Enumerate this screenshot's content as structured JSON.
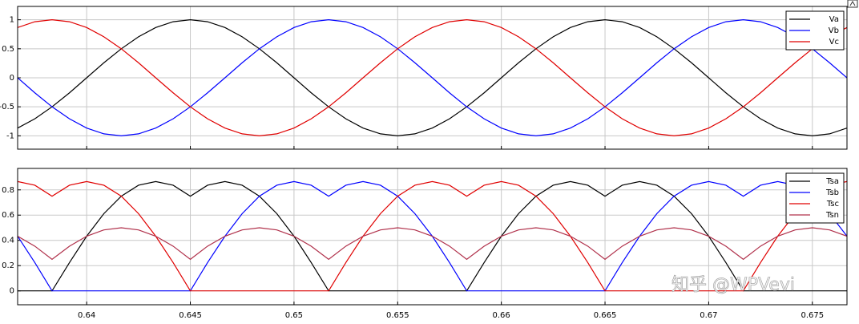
{
  "chart_data": [
    {
      "type": "line",
      "x": [
        0.63667,
        0.6375,
        0.63833,
        0.63917,
        0.64,
        0.64083,
        0.64167,
        0.6425,
        0.64333,
        0.64417,
        0.645,
        0.64583,
        0.64667,
        0.6475,
        0.64833,
        0.64917,
        0.65,
        0.65083,
        0.65167,
        0.6525,
        0.65333,
        0.65417,
        0.655,
        0.65583,
        0.65667,
        0.6575,
        0.65833,
        0.65917,
        0.66,
        0.66083,
        0.66167,
        0.6625,
        0.66333,
        0.66417,
        0.665,
        0.66583,
        0.66667,
        0.6675,
        0.66833,
        0.66917,
        0.67,
        0.67083,
        0.67167,
        0.6725,
        0.67333,
        0.67417,
        0.675,
        0.67583,
        0.67667
      ],
      "series": [
        {
          "name": "Va",
          "color": "#000000",
          "values": [
            -0.866,
            -0.707,
            -0.5,
            -0.259,
            0,
            0.259,
            0.5,
            0.707,
            0.866,
            0.966,
            1,
            0.966,
            0.866,
            0.707,
            0.5,
            0.259,
            0,
            -0.259,
            -0.5,
            -0.707,
            -0.866,
            -0.966,
            -1,
            -0.966,
            -0.866,
            -0.707,
            -0.5,
            -0.259,
            0,
            0.259,
            0.5,
            0.707,
            0.866,
            0.966,
            1,
            0.966,
            0.866,
            0.707,
            0.5,
            0.259,
            0,
            -0.259,
            -0.5,
            -0.707,
            -0.866,
            -0.966,
            -1,
            -0.966,
            -0.866
          ]
        },
        {
          "name": "Vb",
          "color": "#0000ff",
          "values": [
            0,
            -0.259,
            -0.5,
            -0.707,
            -0.866,
            -0.966,
            -1,
            -0.966,
            -0.866,
            -0.707,
            -0.5,
            -0.259,
            0,
            0.259,
            0.5,
            0.707,
            0.866,
            0.966,
            1,
            0.966,
            0.866,
            0.707,
            0.5,
            0.259,
            0,
            -0.259,
            -0.5,
            -0.707,
            -0.866,
            -0.966,
            -1,
            -0.966,
            -0.866,
            -0.707,
            -0.5,
            -0.259,
            0,
            0.259,
            0.5,
            0.707,
            0.866,
            0.966,
            1,
            0.966,
            0.866,
            0.707,
            0.5,
            0.259,
            0
          ]
        },
        {
          "name": "Vc",
          "color": "#e00000",
          "values": [
            0.866,
            0.966,
            1,
            0.966,
            0.866,
            0.707,
            0.5,
            0.259,
            0,
            -0.259,
            -0.5,
            -0.707,
            -0.866,
            -0.966,
            -1,
            -0.966,
            -0.866,
            -0.707,
            -0.5,
            -0.259,
            0,
            0.259,
            0.5,
            0.707,
            0.866,
            0.966,
            1,
            0.966,
            0.866,
            0.707,
            0.5,
            0.259,
            0,
            -0.259,
            -0.5,
            -0.707,
            -0.866,
            -0.966,
            -1,
            -0.966,
            -0.866,
            -0.707,
            -0.5,
            -0.259,
            0,
            0.259,
            0.5,
            0.707,
            0.866
          ]
        }
      ],
      "xlim": [
        0.63667,
        0.67667
      ],
      "ylim": [
        -1.23,
        1.23
      ],
      "yticks": [
        -1,
        -0.5,
        0,
        0.5,
        1
      ],
      "grid": true,
      "legend": "upper-right"
    },
    {
      "type": "line",
      "x": [
        0.63667,
        0.6375,
        0.63833,
        0.63917,
        0.64,
        0.64083,
        0.64167,
        0.6425,
        0.64333,
        0.64417,
        0.645,
        0.64583,
        0.64667,
        0.6475,
        0.64833,
        0.64917,
        0.65,
        0.65083,
        0.65167,
        0.6525,
        0.65333,
        0.65417,
        0.655,
        0.65583,
        0.65667,
        0.6575,
        0.65833,
        0.65917,
        0.66,
        0.66083,
        0.66167,
        0.6625,
        0.66333,
        0.66417,
        0.665,
        0.66583,
        0.66667,
        0.6675,
        0.66833,
        0.66917,
        0.67,
        0.67083,
        0.67167,
        0.6725,
        0.67333,
        0.67417,
        0.675,
        0.67583,
        0.67667
      ],
      "series": [
        {
          "name": "Tsa",
          "color": "#000000",
          "values": [
            0,
            0,
            0,
            0.224,
            0.433,
            0.612,
            0.75,
            0.837,
            0.866,
            0.837,
            0.75,
            0.837,
            0.866,
            0.837,
            0.75,
            0.612,
            0.433,
            0.224,
            0,
            0,
            0,
            0,
            0,
            0,
            0,
            0,
            0,
            0.224,
            0.433,
            0.612,
            0.75,
            0.837,
            0.866,
            0.837,
            0.75,
            0.837,
            0.866,
            0.837,
            0.75,
            0.612,
            0.433,
            0.224,
            0,
            0,
            0,
            0,
            0,
            0,
            0
          ]
        },
        {
          "name": "Tsb",
          "color": "#0000ff",
          "values": [
            0.433,
            0.224,
            0,
            0,
            0,
            0,
            0,
            0,
            0,
            0,
            0,
            0.224,
            0.433,
            0.612,
            0.75,
            0.837,
            0.866,
            0.837,
            0.75,
            0.837,
            0.866,
            0.837,
            0.75,
            0.612,
            0.433,
            0.224,
            0,
            0,
            0,
            0,
            0,
            0,
            0,
            0,
            0,
            0.224,
            0.433,
            0.612,
            0.75,
            0.837,
            0.866,
            0.837,
            0.75,
            0.837,
            0.866,
            0.837,
            0.75,
            0.612,
            0.433
          ]
        },
        {
          "name": "Tsc",
          "color": "#e00000",
          "values": [
            0.866,
            0.837,
            0.75,
            0.837,
            0.866,
            0.837,
            0.75,
            0.612,
            0.433,
            0.224,
            0,
            0,
            0,
            0,
            0,
            0,
            0,
            0,
            0,
            0.224,
            0.433,
            0.612,
            0.75,
            0.837,
            0.866,
            0.837,
            0.75,
            0.837,
            0.866,
            0.837,
            0.75,
            0.612,
            0.433,
            0.224,
            0,
            0,
            0,
            0,
            0,
            0,
            0,
            0,
            0,
            0.224,
            0.433,
            0.612,
            0.75,
            0.837,
            0.866
          ]
        },
        {
          "name": "Tsn",
          "color": "#b0304a",
          "values": [
            0.433,
            0.354,
            0.25,
            0.354,
            0.433,
            0.483,
            0.5,
            0.483,
            0.433,
            0.354,
            0.25,
            0.354,
            0.433,
            0.483,
            0.5,
            0.483,
            0.433,
            0.354,
            0.25,
            0.354,
            0.433,
            0.483,
            0.5,
            0.483,
            0.433,
            0.354,
            0.25,
            0.354,
            0.433,
            0.483,
            0.5,
            0.483,
            0.433,
            0.354,
            0.25,
            0.354,
            0.433,
            0.483,
            0.5,
            0.483,
            0.433,
            0.354,
            0.25,
            0.354,
            0.433,
            0.483,
            0.5,
            0.483,
            0.433
          ]
        }
      ],
      "xlim": [
        0.63667,
        0.67667
      ],
      "ylim": [
        -0.11,
        0.97
      ],
      "xticks": [
        0.64,
        0.645,
        0.65,
        0.655,
        0.66,
        0.665,
        0.67,
        0.675
      ],
      "yticks": [
        0,
        0.2,
        0.4,
        0.6,
        0.8
      ],
      "grid": true,
      "legend": "upper-right"
    }
  ],
  "watermark": "知乎 @WPVevi"
}
